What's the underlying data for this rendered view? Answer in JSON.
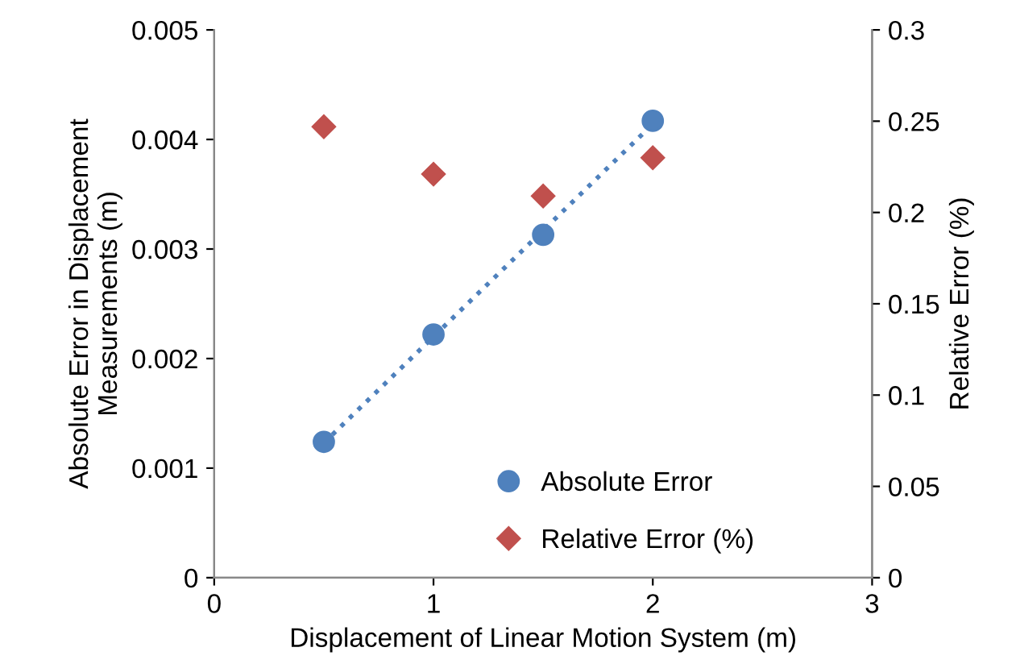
{
  "chart_data": {
    "type": "scatter",
    "xlabel": "Displacement of Linear Motion System (m)",
    "ylabel": "Absolute Error in Displacement\nMeasurements (m)",
    "y2label": "Relative Error (%)",
    "x": [
      0.5,
      1,
      1.5,
      2
    ],
    "series": [
      {
        "name": "Absolute Error",
        "color": "#4f81bd",
        "marker": "circle",
        "values": [
          0.00124,
          0.00222,
          0.00313,
          0.00417
        ]
      },
      {
        "name": "Relative Error (%)",
        "color": "#c0504d",
        "marker": "diamond",
        "axis": "y2",
        "values": [
          0.247,
          0.221,
          0.209,
          0.23
        ]
      },
      {
        "type": "line",
        "color": "#4f81bd",
        "line_style": "dotted",
        "marker": "none",
        "x": [
          0.5,
          2
        ],
        "values": [
          0.00123,
          0.00414
        ]
      }
    ],
    "xlim": [
      0,
      3
    ],
    "xticks": [
      0,
      1,
      2,
      3
    ],
    "ylim": [
      0,
      0.005
    ],
    "yticks": [
      0,
      0.001,
      0.002,
      0.003,
      0.004,
      0.005
    ],
    "y2lim": [
      0,
      0.3
    ],
    "y2ticks": [
      0,
      0.05,
      0.1,
      0.15,
      0.2,
      0.25,
      0.3
    ],
    "grid": false,
    "legend": "bottom right"
  }
}
